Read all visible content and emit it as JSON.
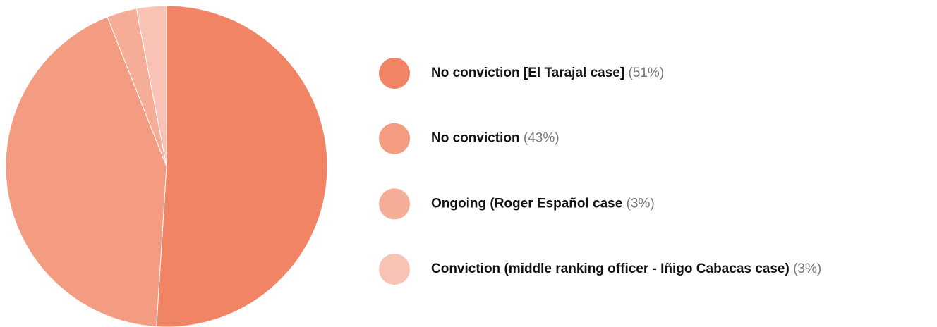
{
  "chart_data": {
    "type": "pie",
    "categories": [
      "No conviction [El Tarajal case]",
      "No conviction",
      "Ongoing (Roger Español case",
      "Conviction (middle ranking officer - Iñigo Cabacas case)"
    ],
    "values": [
      51,
      43,
      3,
      3
    ],
    "value_labels": [
      "(51%)",
      "(43%)",
      "(3%)",
      "(3%)"
    ],
    "colors": [
      "#f28466",
      "#f39c81",
      "#f5ad98",
      "#f8c3b5"
    ]
  }
}
